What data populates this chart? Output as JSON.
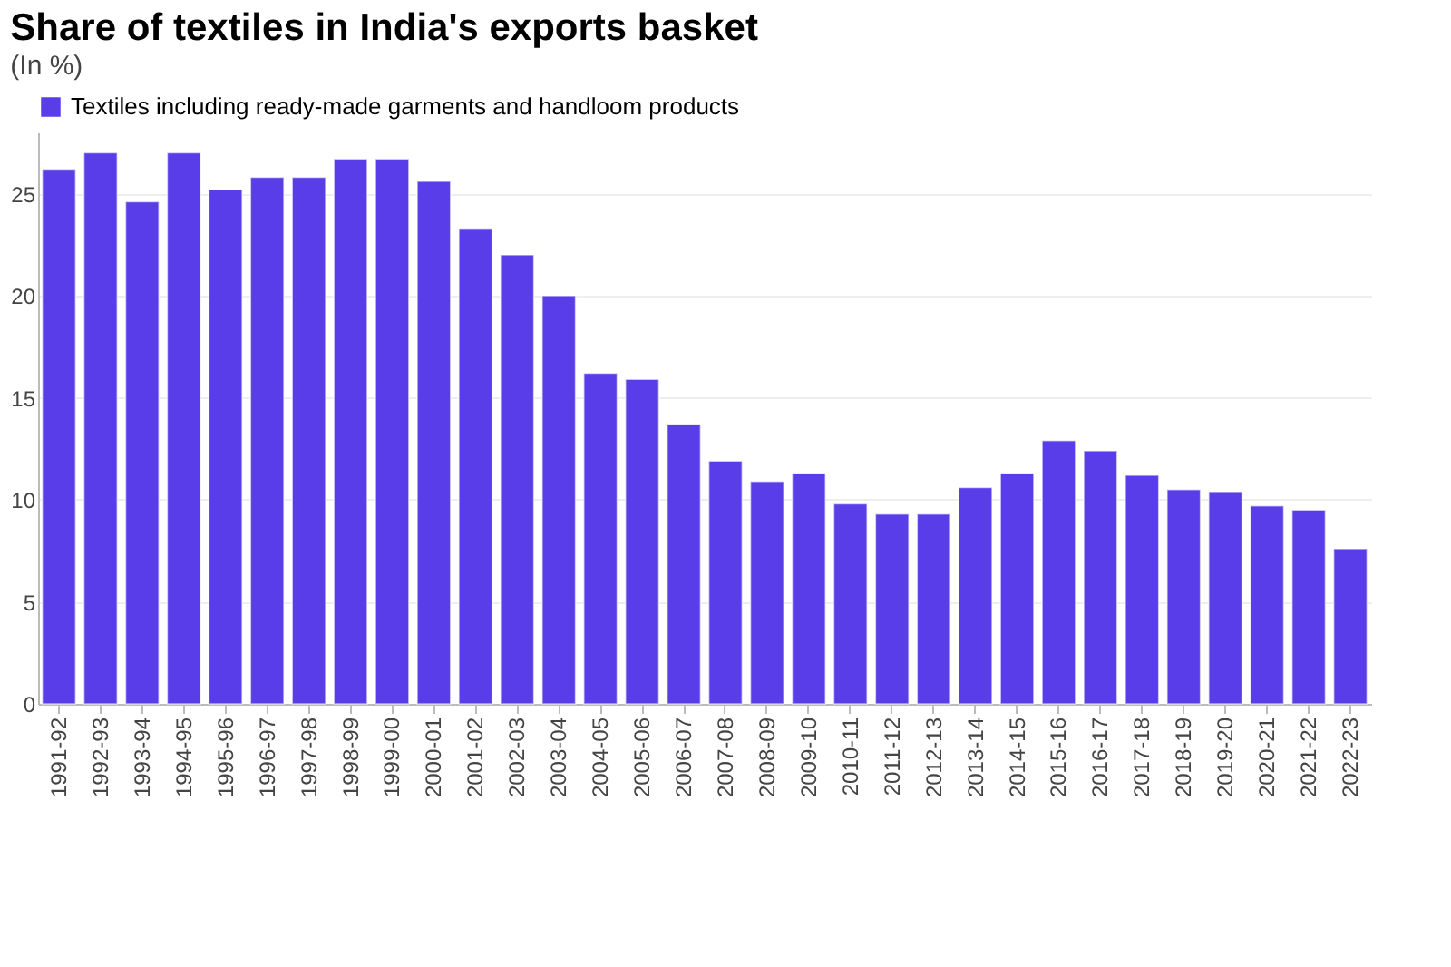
{
  "chart_data": {
    "type": "bar",
    "title": "Share of textiles in India's exports basket",
    "subtitle": "(In %)",
    "categories": [
      "1991-92",
      "1992-93",
      "1993-94",
      "1994-95",
      "1995-96",
      "1996-97",
      "1997-98",
      "1998-99",
      "1999-00",
      "2000-01",
      "2001-02",
      "2002-03",
      "2003-04",
      "2004-05",
      "2005-06",
      "2006-07",
      "2007-08",
      "2008-09",
      "2009-10",
      "2010-11",
      "2011-12",
      "2012-13",
      "2013-14",
      "2014-15",
      "2015-16",
      "2016-17",
      "2017-18",
      "2018-19",
      "2019-20",
      "2020-21",
      "2021-22",
      "2022-23"
    ],
    "series": [
      {
        "name": "Textiles including ready-made garments and handloom products",
        "color": "#583de8",
        "values": [
          26.2,
          27.0,
          24.6,
          27.0,
          25.2,
          25.8,
          25.8,
          26.7,
          26.7,
          25.6,
          23.3,
          22.0,
          20.0,
          16.2,
          15.9,
          13.7,
          11.9,
          10.9,
          11.3,
          9.8,
          9.3,
          9.3,
          10.6,
          11.3,
          12.9,
          12.4,
          11.2,
          10.5,
          10.4,
          9.7,
          9.5,
          7.6
        ]
      }
    ],
    "ylim": [
      0,
      28
    ],
    "yticks": [
      0,
      5,
      10,
      15,
      20,
      25
    ],
    "grid": "y",
    "legend": "top"
  }
}
